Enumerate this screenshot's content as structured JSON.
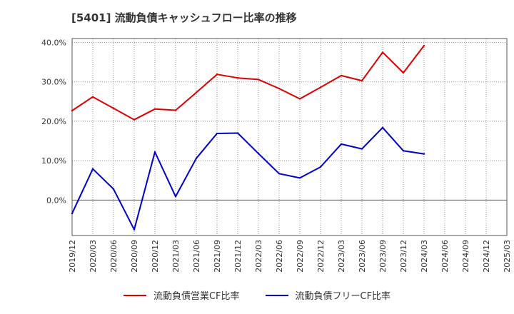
{
  "chart_data": {
    "type": "line",
    "title": "[5401]  流動負債キャッシュフロー比率の推移",
    "x": [
      "2019/12",
      "2020/03",
      "2020/06",
      "2020/09",
      "2020/12",
      "2021/03",
      "2021/06",
      "2021/09",
      "2021/12",
      "2022/03",
      "2022/06",
      "2022/09",
      "2022/12",
      "2023/03",
      "2023/06",
      "2023/09",
      "2023/12",
      "2024/03",
      "2024/06",
      "2024/09",
      "2024/12",
      "2025/03"
    ],
    "ylim": [
      -9,
      41
    ],
    "yticks": [
      0,
      10,
      20,
      30,
      40
    ],
    "ytick_labels": [
      "0.0%",
      "10.0%",
      "20.0%",
      "30.0%",
      "40.0%"
    ],
    "grid": true,
    "legend_position": "bottom",
    "series": [
      {
        "name": "流動負債営業CF比率",
        "color": "#dd0000",
        "values": [
          22.7,
          26.2,
          23.3,
          20.4,
          23.1,
          22.8,
          27.3,
          31.9,
          31.0,
          30.6,
          28.3,
          25.7,
          28.6,
          31.6,
          30.3,
          37.5,
          32.3,
          39.2,
          null,
          null,
          null,
          null
        ]
      },
      {
        "name": "流動負債フリーCF比率",
        "color": "#0000cc",
        "values": [
          -3.4,
          7.9,
          2.8,
          -7.5,
          12.2,
          0.9,
          10.6,
          16.9,
          17.0,
          11.8,
          6.7,
          5.6,
          8.4,
          14.2,
          13.0,
          18.4,
          12.5,
          11.7,
          null,
          null,
          null,
          null
        ]
      }
    ]
  }
}
